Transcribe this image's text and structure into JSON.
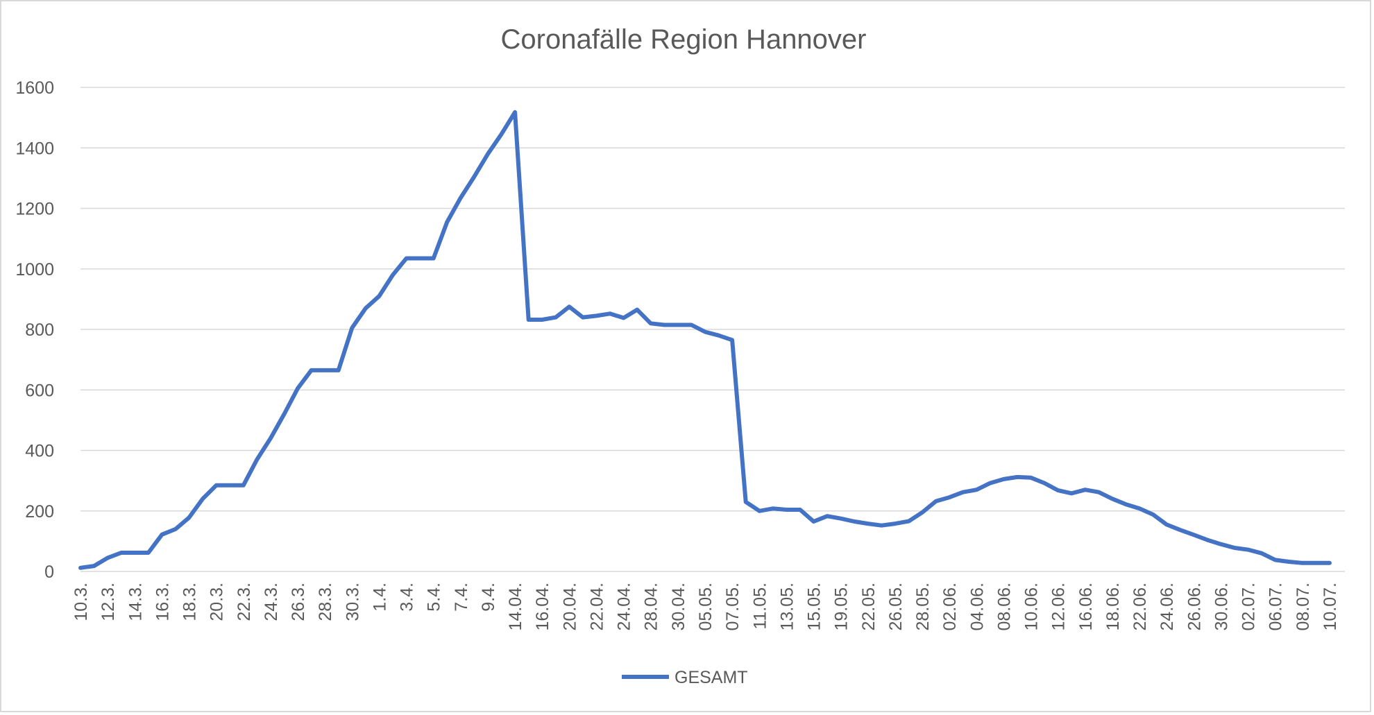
{
  "chart_data": {
    "type": "line",
    "title": "Coronafälle Region Hannover",
    "xlabel": "",
    "ylabel": "",
    "ylim": [
      0,
      1600
    ],
    "yticks": [
      0,
      200,
      400,
      600,
      800,
      1000,
      1200,
      1400,
      1600
    ],
    "grid": true,
    "legend_position": "bottom",
    "colors": {
      "line": "#4472C4",
      "grid": "#d9d9d9",
      "text": "#595959"
    },
    "categories": [
      "10.3.",
      "11.3.",
      "12.3.",
      "13.3.",
      "14.3.",
      "15.3.",
      "16.3.",
      "17.3.",
      "18.3.",
      "19.3.",
      "20.3.",
      "21.3.",
      "22.3.",
      "23.3.",
      "24.3.",
      "25.3.",
      "26.3.",
      "27.3.",
      "28.3.",
      "29.3.",
      "30.3.",
      "31.3.",
      "1.4.",
      "2.4.",
      "3.4.",
      "4.4.",
      "5.4.",
      "6.4.",
      "7.4.",
      "8.4.",
      "9.4.",
      "10.4.",
      "14.04.",
      "15.04.",
      "16.04.",
      "17.04.",
      "20.04.",
      "21.04.",
      "22.04.",
      "23.04.",
      "24.04.",
      "27.04.",
      "28.04.",
      "29.04.",
      "30.04.",
      "04.05.",
      "05.05.",
      "06.05.",
      "07.05.",
      "08.05.",
      "11.05.",
      "12.05.",
      "13.05.",
      "14.05.",
      "15.05.",
      "18.05.",
      "19.05.",
      "20.05.",
      "22.05.",
      "25.05.",
      "26.05.",
      "27.05.",
      "28.05.",
      "29.05.",
      "02.06.",
      "03.06.",
      "04.06.",
      "05.06.",
      "08.06.",
      "09.06.",
      "10.06.",
      "11.06.",
      "12.06.",
      "15.06.",
      "16.06.",
      "17.06.",
      "18.06.",
      "19.06.",
      "22.06.",
      "23.06.",
      "24.06.",
      "25.06.",
      "26.06.",
      "29.06.",
      "30.06.",
      "01.07.",
      "02.07.",
      "03.07.",
      "06.07.",
      "07.07.",
      "08.07.",
      "09.07.",
      "10.07."
    ],
    "labeled_ticks": [
      "10.3.",
      "12.3.",
      "14.3.",
      "16.3.",
      "18.3.",
      "20.3.",
      "22.3.",
      "24.3.",
      "26.3.",
      "28.3.",
      "30.3.",
      "1.4.",
      "3.4.",
      "5.4.",
      "7.4.",
      "9.4.",
      "14.04.",
      "16.04.",
      "20.04.",
      "22.04.",
      "24.04.",
      "28.04.",
      "30.04.",
      "05.05.",
      "07.05.",
      "11.05.",
      "13.05.",
      "15.05.",
      "19.05.",
      "22.05.",
      "26.05.",
      "28.05.",
      "02.06.",
      "04.06.",
      "08.06.",
      "10.06.",
      "12.06.",
      "16.06.",
      "18.06.",
      "22.06.",
      "24.06.",
      "26.06.",
      "30.06.",
      "02.07.",
      "06.07.",
      "08.07.",
      "10.07."
    ],
    "series": [
      {
        "name": "GESAMT",
        "values": [
          12,
          18,
          45,
          62,
          62,
          62,
          122,
          140,
          178,
          240,
          285,
          285,
          285,
          370,
          440,
          520,
          605,
          665,
          665,
          665,
          805,
          870,
          910,
          980,
          1035,
          1035,
          1035,
          1155,
          1235,
          1305,
          1380,
          1445,
          1518,
          832,
          832,
          840,
          875,
          840,
          845,
          852,
          838,
          865,
          820,
          815,
          815,
          815,
          792,
          780,
          765,
          230,
          200,
          208,
          204,
          204,
          165,
          183,
          175,
          165,
          158,
          152,
          158,
          166,
          195,
          232,
          245,
          262,
          270,
          292,
          305,
          312,
          310,
          292,
          268,
          258,
          270,
          262,
          240,
          222,
          208,
          188,
          155,
          137,
          121,
          104,
          90,
          78,
          72,
          60,
          38,
          32,
          28,
          28,
          28
        ]
      }
    ]
  }
}
